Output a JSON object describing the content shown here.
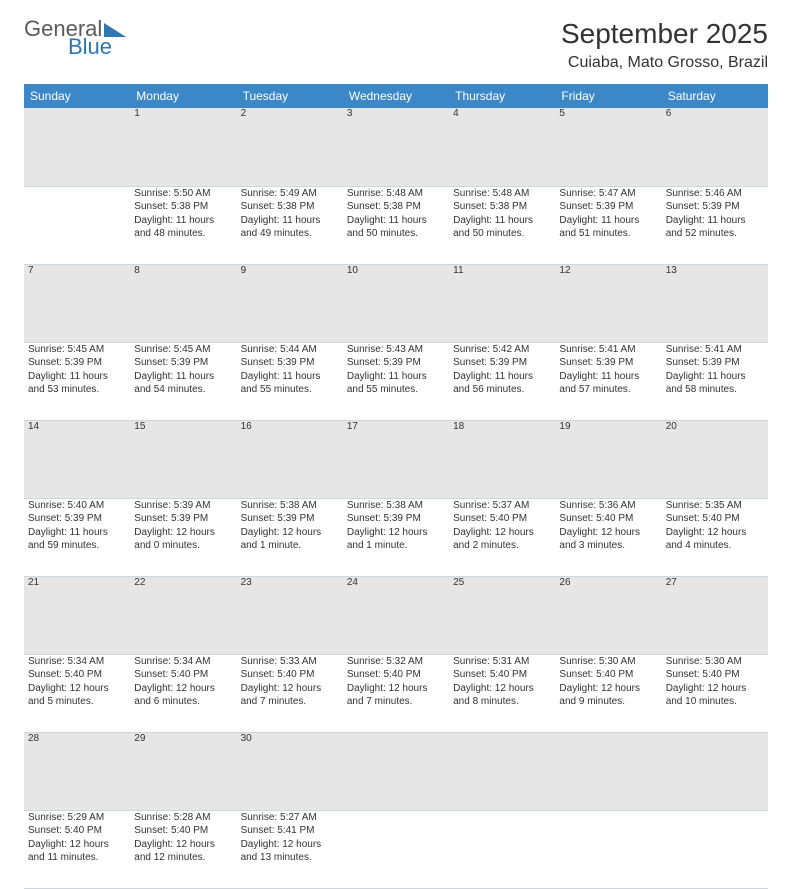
{
  "brand": {
    "word1": "General",
    "word2": "Blue"
  },
  "title": "September 2025",
  "location": "Cuiaba, Mato Grosso, Brazil",
  "colors": {
    "header_bg": "#3b87c8",
    "header_fg": "#ffffff",
    "daynum_bg": "#e6e6e6",
    "text": "#333333",
    "rule": "#cfd6dc",
    "brand_blue": "#2f77b3",
    "brand_gray": "#5a5a5a"
  },
  "weekdays": [
    "Sunday",
    "Monday",
    "Tuesday",
    "Wednesday",
    "Thursday",
    "Friday",
    "Saturday"
  ],
  "weeks": [
    [
      null,
      {
        "n": "1",
        "sr": "Sunrise: 5:50 AM",
        "ss": "Sunset: 5:38 PM",
        "d1": "Daylight: 11 hours",
        "d2": "and 48 minutes."
      },
      {
        "n": "2",
        "sr": "Sunrise: 5:49 AM",
        "ss": "Sunset: 5:38 PM",
        "d1": "Daylight: 11 hours",
        "d2": "and 49 minutes."
      },
      {
        "n": "3",
        "sr": "Sunrise: 5:48 AM",
        "ss": "Sunset: 5:38 PM",
        "d1": "Daylight: 11 hours",
        "d2": "and 50 minutes."
      },
      {
        "n": "4",
        "sr": "Sunrise: 5:48 AM",
        "ss": "Sunset: 5:38 PM",
        "d1": "Daylight: 11 hours",
        "d2": "and 50 minutes."
      },
      {
        "n": "5",
        "sr": "Sunrise: 5:47 AM",
        "ss": "Sunset: 5:39 PM",
        "d1": "Daylight: 11 hours",
        "d2": "and 51 minutes."
      },
      {
        "n": "6",
        "sr": "Sunrise: 5:46 AM",
        "ss": "Sunset: 5:39 PM",
        "d1": "Daylight: 11 hours",
        "d2": "and 52 minutes."
      }
    ],
    [
      {
        "n": "7",
        "sr": "Sunrise: 5:45 AM",
        "ss": "Sunset: 5:39 PM",
        "d1": "Daylight: 11 hours",
        "d2": "and 53 minutes."
      },
      {
        "n": "8",
        "sr": "Sunrise: 5:45 AM",
        "ss": "Sunset: 5:39 PM",
        "d1": "Daylight: 11 hours",
        "d2": "and 54 minutes."
      },
      {
        "n": "9",
        "sr": "Sunrise: 5:44 AM",
        "ss": "Sunset: 5:39 PM",
        "d1": "Daylight: 11 hours",
        "d2": "and 55 minutes."
      },
      {
        "n": "10",
        "sr": "Sunrise: 5:43 AM",
        "ss": "Sunset: 5:39 PM",
        "d1": "Daylight: 11 hours",
        "d2": "and 55 minutes."
      },
      {
        "n": "11",
        "sr": "Sunrise: 5:42 AM",
        "ss": "Sunset: 5:39 PM",
        "d1": "Daylight: 11 hours",
        "d2": "and 56 minutes."
      },
      {
        "n": "12",
        "sr": "Sunrise: 5:41 AM",
        "ss": "Sunset: 5:39 PM",
        "d1": "Daylight: 11 hours",
        "d2": "and 57 minutes."
      },
      {
        "n": "13",
        "sr": "Sunrise: 5:41 AM",
        "ss": "Sunset: 5:39 PM",
        "d1": "Daylight: 11 hours",
        "d2": "and 58 minutes."
      }
    ],
    [
      {
        "n": "14",
        "sr": "Sunrise: 5:40 AM",
        "ss": "Sunset: 5:39 PM",
        "d1": "Daylight: 11 hours",
        "d2": "and 59 minutes."
      },
      {
        "n": "15",
        "sr": "Sunrise: 5:39 AM",
        "ss": "Sunset: 5:39 PM",
        "d1": "Daylight: 12 hours",
        "d2": "and 0 minutes."
      },
      {
        "n": "16",
        "sr": "Sunrise: 5:38 AM",
        "ss": "Sunset: 5:39 PM",
        "d1": "Daylight: 12 hours",
        "d2": "and 1 minute."
      },
      {
        "n": "17",
        "sr": "Sunrise: 5:38 AM",
        "ss": "Sunset: 5:39 PM",
        "d1": "Daylight: 12 hours",
        "d2": "and 1 minute."
      },
      {
        "n": "18",
        "sr": "Sunrise: 5:37 AM",
        "ss": "Sunset: 5:40 PM",
        "d1": "Daylight: 12 hours",
        "d2": "and 2 minutes."
      },
      {
        "n": "19",
        "sr": "Sunrise: 5:36 AM",
        "ss": "Sunset: 5:40 PM",
        "d1": "Daylight: 12 hours",
        "d2": "and 3 minutes."
      },
      {
        "n": "20",
        "sr": "Sunrise: 5:35 AM",
        "ss": "Sunset: 5:40 PM",
        "d1": "Daylight: 12 hours",
        "d2": "and 4 minutes."
      }
    ],
    [
      {
        "n": "21",
        "sr": "Sunrise: 5:34 AM",
        "ss": "Sunset: 5:40 PM",
        "d1": "Daylight: 12 hours",
        "d2": "and 5 minutes."
      },
      {
        "n": "22",
        "sr": "Sunrise: 5:34 AM",
        "ss": "Sunset: 5:40 PM",
        "d1": "Daylight: 12 hours",
        "d2": "and 6 minutes."
      },
      {
        "n": "23",
        "sr": "Sunrise: 5:33 AM",
        "ss": "Sunset: 5:40 PM",
        "d1": "Daylight: 12 hours",
        "d2": "and 7 minutes."
      },
      {
        "n": "24",
        "sr": "Sunrise: 5:32 AM",
        "ss": "Sunset: 5:40 PM",
        "d1": "Daylight: 12 hours",
        "d2": "and 7 minutes."
      },
      {
        "n": "25",
        "sr": "Sunrise: 5:31 AM",
        "ss": "Sunset: 5:40 PM",
        "d1": "Daylight: 12 hours",
        "d2": "and 8 minutes."
      },
      {
        "n": "26",
        "sr": "Sunrise: 5:30 AM",
        "ss": "Sunset: 5:40 PM",
        "d1": "Daylight: 12 hours",
        "d2": "and 9 minutes."
      },
      {
        "n": "27",
        "sr": "Sunrise: 5:30 AM",
        "ss": "Sunset: 5:40 PM",
        "d1": "Daylight: 12 hours",
        "d2": "and 10 minutes."
      }
    ],
    [
      {
        "n": "28",
        "sr": "Sunrise: 5:29 AM",
        "ss": "Sunset: 5:40 PM",
        "d1": "Daylight: 12 hours",
        "d2": "and 11 minutes."
      },
      {
        "n": "29",
        "sr": "Sunrise: 5:28 AM",
        "ss": "Sunset: 5:40 PM",
        "d1": "Daylight: 12 hours",
        "d2": "and 12 minutes."
      },
      {
        "n": "30",
        "sr": "Sunrise: 5:27 AM",
        "ss": "Sunset: 5:41 PM",
        "d1": "Daylight: 12 hours",
        "d2": "and 13 minutes."
      },
      null,
      null,
      null,
      null
    ]
  ]
}
